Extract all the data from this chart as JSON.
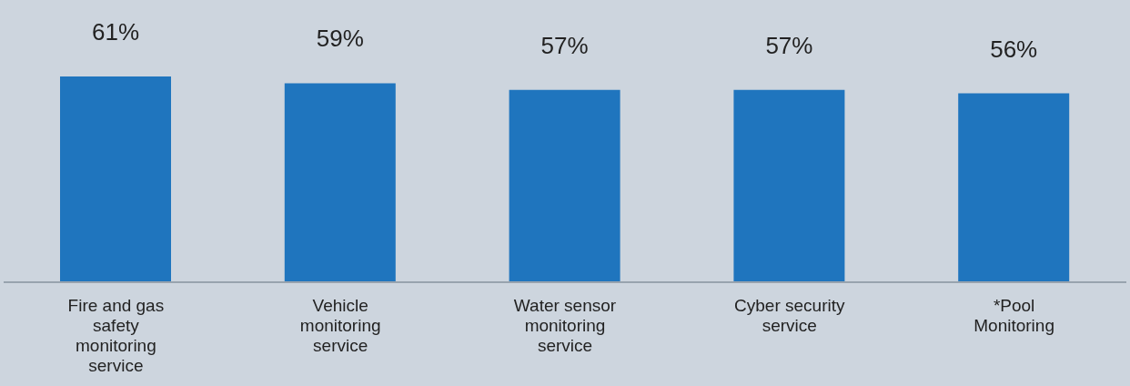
{
  "chart_data": {
    "type": "bar",
    "categories": [
      "Fire and gas safety monitoring service",
      "Vehicle monitoring service",
      "Water sensor monitoring service",
      "Cyber security service",
      "*Pool Monitoring"
    ],
    "values": [
      61,
      59,
      57,
      57,
      56
    ],
    "color": "#1f75be",
    "value_labels": [
      "61%",
      "59%",
      "57%",
      "57%",
      "56%"
    ],
    "grid": false,
    "legend": false
  }
}
